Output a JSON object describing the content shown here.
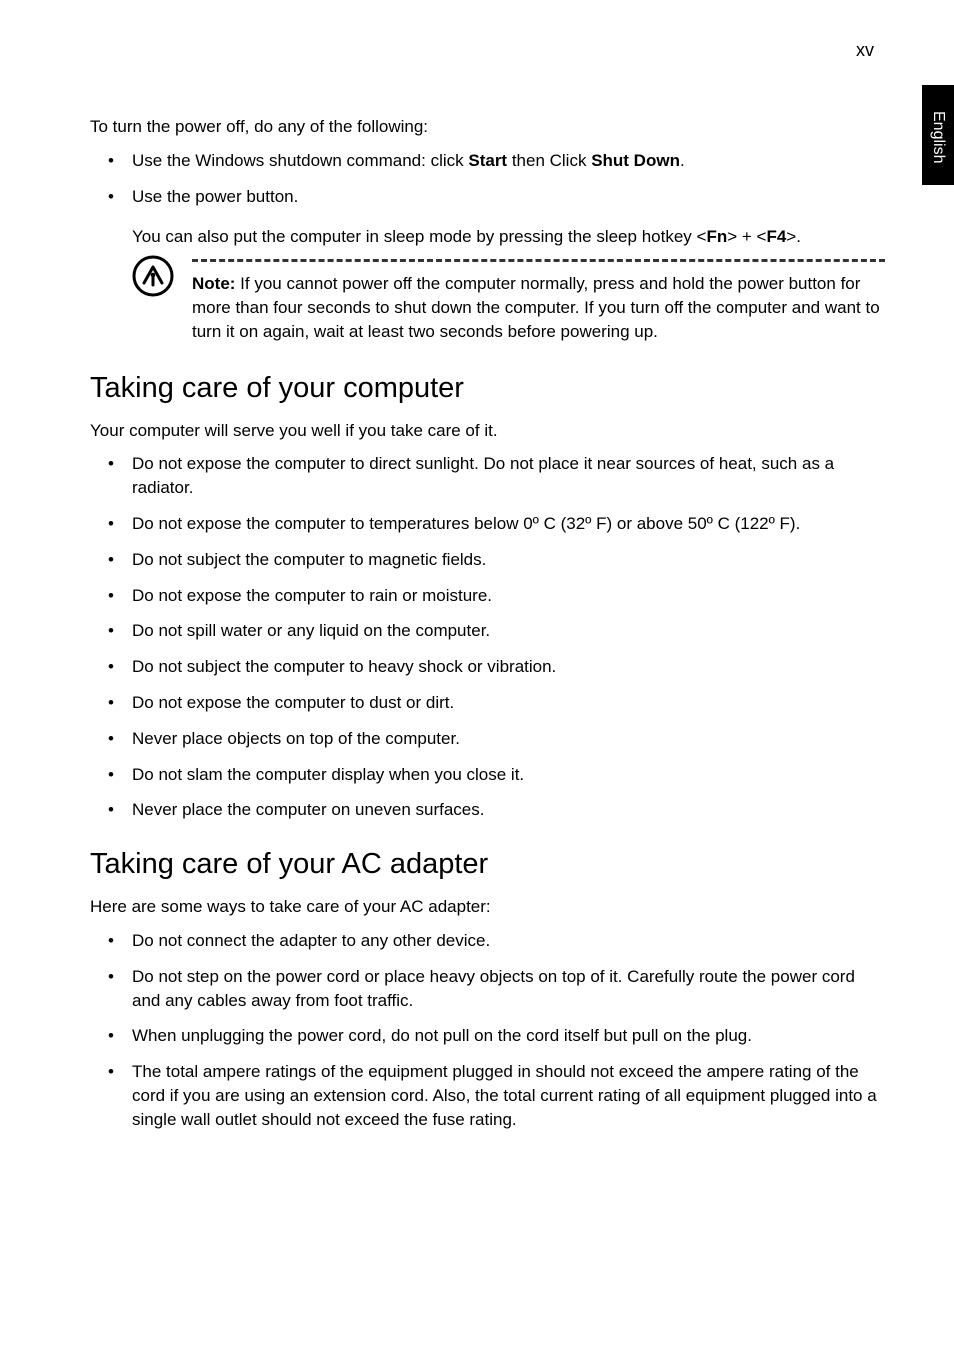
{
  "page_number": "xv",
  "side_tab": "English",
  "intro_text": "To turn the power off, do any of the following:",
  "bullets_top": [
    {
      "html": "Use the Windows shutdown command: click <b>Start</b> then Click <b>Shut Down</b>."
    },
    {
      "html": "Use the power button."
    }
  ],
  "sleep_para": {
    "html": "You can also put the computer in sleep mode by pressing the sleep hotkey &lt;<b>Fn</b>&gt; + &lt;<b>F4</b>&gt;."
  },
  "note": {
    "html": "<b>Note:</b> If you cannot power off the computer normally, press and hold the power button for more than four seconds to shut down the computer. If you turn off the computer and want to turn it on again, wait at least two seconds before powering up."
  },
  "section1": {
    "title": "Taking care of your computer",
    "intro": "Your computer will serve you well if you take care of it.",
    "bullets": [
      "Do not expose the computer to direct sunlight. Do not place it near sources of heat, such as a radiator.",
      "Do not expose the computer to temperatures below 0º C (32º F) or above 50º C (122º F).",
      "Do not subject the computer to magnetic fields.",
      "Do not expose the computer to rain or moisture.",
      "Do not spill water or any liquid on the computer.",
      "Do not subject the computer to heavy shock or vibration.",
      "Do not expose the computer to dust or dirt.",
      "Never place objects on top of the computer.",
      "Do not slam the computer display when you close it.",
      "Never place the computer on uneven surfaces."
    ]
  },
  "section2": {
    "title": "Taking care of your AC adapter",
    "intro": "Here are some ways to take care of your AC adapter:",
    "bullets": [
      "Do not connect the adapter to any other device.",
      "Do not step on the power cord or place heavy objects on top of it.  Carefully route the power cord and any cables away from foot traffic.",
      "When unplugging the power cord, do not pull on the cord itself but pull on the plug.",
      "The total ampere ratings of the equipment plugged in should not exceed the ampere rating of the cord if you are using an extension cord. Also, the total current rating of all equipment plugged into a single wall outlet should not exceed the fuse rating."
    ]
  },
  "colors": {
    "text": "#000000",
    "background": "#ffffff",
    "tab_bg": "#000000",
    "tab_fg": "#ffffff",
    "dash": "#333333"
  },
  "fonts": {
    "body_size_pt": 13,
    "h2_size_pt": 22
  }
}
